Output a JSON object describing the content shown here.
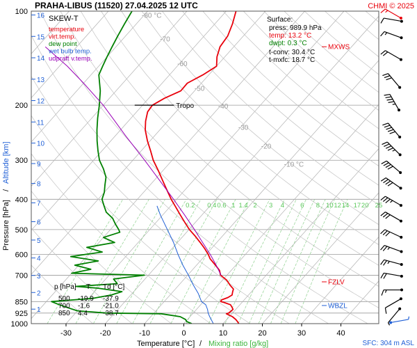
{
  "header": {
    "title": "PRAHA-LIBUS (11520)    27.04.2025 12 UTC",
    "credit": "CHMI © 2025"
  },
  "chart_data": {
    "type": "line",
    "subtitle": "SKEW-T",
    "xlabel": {
      "temperature": "Temperature [°C]",
      "separator": "/",
      "mixing": "Mixing ratio [g/kg]"
    },
    "ylabel": {
      "pressure": "Pressure [hPa]",
      "separator": "/",
      "altitude": "Altitude [km]"
    },
    "xlim": [
      -35,
      45
    ],
    "x_ticks": [
      -30,
      -20,
      -10,
      0,
      10,
      20,
      30,
      40
    ],
    "p_ticks": [
      100,
      200,
      300,
      400,
      500,
      600,
      700,
      850,
      925,
      1000
    ],
    "km_ticks": [
      1,
      2,
      3,
      4,
      5,
      6,
      7,
      8,
      9,
      10,
      11,
      12,
      13,
      14,
      15,
      16
    ],
    "isotherm_labels": [
      {
        "t": -80,
        "p": 105,
        "text": "-80 °C"
      },
      {
        "t": -70,
        "p": 125,
        "text": "-70"
      },
      {
        "t": -60,
        "p": 150,
        "text": "-60"
      },
      {
        "t": -50,
        "p": 180,
        "text": "-50"
      },
      {
        "t": -40,
        "p": 205,
        "text": "-40"
      },
      {
        "t": -30,
        "p": 240,
        "text": "-30"
      },
      {
        "t": -20,
        "p": 275,
        "text": "-20"
      },
      {
        "t": -10,
        "p": 315,
        "text": "-10 °C"
      }
    ],
    "mixing_ratio_labels": [
      {
        "t": -26,
        "text": "0.2"
      },
      {
        "t": -20.5,
        "text": "0.4"
      },
      {
        "t": -18,
        "text": "0.6"
      },
      {
        "t": -15,
        "text": "1"
      },
      {
        "t": -12.5,
        "text": "1.4"
      },
      {
        "t": -9.5,
        "text": "2"
      },
      {
        "t": -5.5,
        "text": "3"
      },
      {
        "t": -2.5,
        "text": "4"
      },
      {
        "t": 2.5,
        "text": "6"
      },
      {
        "t": 6.5,
        "text": "8"
      },
      {
        "t": 9.5,
        "text": "10"
      },
      {
        "t": 11.5,
        "text": "12"
      },
      {
        "t": 13.5,
        "text": "14"
      },
      {
        "t": 16.5,
        "text": "17"
      },
      {
        "t": 18.5,
        "text": "20"
      },
      {
        "t": 22,
        "text": "25"
      }
    ],
    "legend": [
      {
        "text": "temperature",
        "color": "#e8000b"
      },
      {
        "text": "virt.temp.",
        "color": "#e8000b"
      },
      {
        "text": "dew point",
        "color": "#008000"
      },
      {
        "text": "wet bulb temp.",
        "color": "#1f5fd6"
      },
      {
        "text": "udpraft v.temp.",
        "color": "#9a00b8"
      }
    ],
    "surface": {
      "heading": "Surface:",
      "lines": [
        {
          "text": "press: 989.9 hPa",
          "color": "#000000"
        },
        {
          "text": "temp: 13.2 °C",
          "color": "#e8000b"
        },
        {
          "text": "dwpt: 0.3 °C",
          "color": "#008000"
        }
      ],
      "conv": [
        {
          "text": "t-conv: 30.4 °C"
        },
        {
          "text": "t-mxfc: 18.7 °C"
        }
      ]
    },
    "levels_table": {
      "headers": [
        "p [hPa]",
        "T",
        "Td [°C]"
      ],
      "rows": [
        [
          "500",
          "-19.9",
          "-37.9"
        ],
        [
          "700",
          "-1.6",
          "-21.0"
        ],
        [
          "850",
          "4.4",
          "-38.7"
        ]
      ]
    },
    "markers": [
      {
        "label": "MXWS",
        "p": 130,
        "color": "#e8000b"
      },
      {
        "label": "FZLV",
        "p": 735,
        "color": "#e8000b"
      },
      {
        "label": "WBZL",
        "p": 875,
        "color": "#1f5fd6"
      }
    ],
    "tropopause": {
      "p": 200,
      "label": "Tropo"
    },
    "sfc_label": "SFC: 304 m ASL",
    "series": [
      {
        "name": "temperature",
        "color": "#e8000b",
        "points": [
          [
            1000,
            14
          ],
          [
            985,
            13.2
          ],
          [
            970,
            12.3
          ],
          [
            950,
            10.8
          ],
          [
            930,
            8.6
          ],
          [
            925,
            9
          ],
          [
            912,
            9.2
          ],
          [
            900,
            9.3
          ],
          [
            885,
            8.5
          ],
          [
            870,
            7.6
          ],
          [
            855,
            5.4
          ],
          [
            850,
            4.4
          ],
          [
            840,
            4.2
          ],
          [
            825,
            5.3
          ],
          [
            810,
            5.8
          ],
          [
            790,
            5.2
          ],
          [
            775,
            4.8
          ],
          [
            755,
            3.2
          ],
          [
            740,
            2.1
          ],
          [
            725,
            1
          ],
          [
            700,
            -1.6
          ],
          [
            675,
            -3
          ],
          [
            650,
            -5.2
          ],
          [
            620,
            -8
          ],
          [
            600,
            -9.5
          ],
          [
            575,
            -11.7
          ],
          [
            550,
            -14.2
          ],
          [
            525,
            -16.9
          ],
          [
            500,
            -19.9
          ],
          [
            475,
            -22.6
          ],
          [
            450,
            -25.4
          ],
          [
            425,
            -28.3
          ],
          [
            400,
            -31.4
          ],
          [
            375,
            -34.4
          ],
          [
            350,
            -37.6
          ],
          [
            325,
            -41
          ],
          [
            300,
            -44.8
          ],
          [
            280,
            -47.6
          ],
          [
            260,
            -50.7
          ],
          [
            240,
            -53.7
          ],
          [
            225,
            -55.6
          ],
          [
            210,
            -57.2
          ],
          [
            200,
            -57.5
          ],
          [
            190,
            -56
          ],
          [
            180,
            -53.5
          ],
          [
            170,
            -53.6
          ],
          [
            160,
            -51.5
          ],
          [
            150,
            -50
          ],
          [
            140,
            -52
          ],
          [
            130,
            -53.5
          ],
          [
            120,
            -54
          ],
          [
            110,
            -55.5
          ],
          [
            100,
            -57.5
          ]
        ]
      },
      {
        "name": "dew point",
        "color": "#008000",
        "points": [
          [
            1000,
            2
          ],
          [
            985,
            0.3
          ],
          [
            970,
            -0.5
          ],
          [
            950,
            -2.5
          ],
          [
            930,
            -8
          ],
          [
            925,
            -22
          ],
          [
            910,
            -30
          ],
          [
            890,
            -33
          ],
          [
            870,
            -36
          ],
          [
            850,
            -38.7
          ],
          [
            830,
            -29
          ],
          [
            810,
            -25
          ],
          [
            790,
            -23
          ],
          [
            770,
            -30
          ],
          [
            760,
            -36
          ],
          [
            745,
            -26
          ],
          [
            720,
            -28
          ],
          [
            700,
            -21
          ],
          [
            690,
            -40
          ],
          [
            670,
            -36
          ],
          [
            650,
            -41
          ],
          [
            630,
            -36
          ],
          [
            610,
            -44
          ],
          [
            590,
            -37
          ],
          [
            570,
            -42
          ],
          [
            550,
            -36
          ],
          [
            530,
            -40
          ],
          [
            510,
            -37
          ],
          [
            500,
            -37.9
          ],
          [
            480,
            -40
          ],
          [
            460,
            -42
          ],
          [
            440,
            -45
          ],
          [
            420,
            -47
          ],
          [
            400,
            -49
          ],
          [
            380,
            -50
          ],
          [
            360,
            -51.5
          ],
          [
            340,
            -53
          ],
          [
            320,
            -55.5
          ],
          [
            300,
            -58.5
          ],
          [
            280,
            -61
          ],
          [
            260,
            -63.5
          ],
          [
            240,
            -66
          ],
          [
            220,
            -68.5
          ],
          [
            200,
            -71
          ],
          [
            180,
            -74
          ],
          [
            160,
            -78
          ],
          [
            150,
            -79
          ],
          [
            140,
            -80
          ],
          [
            130,
            -81
          ],
          [
            120,
            -82
          ],
          [
            110,
            -83
          ],
          [
            100,
            -84
          ]
        ]
      },
      {
        "name": "wet bulb temp.",
        "color": "#1f5fd6",
        "points": [
          [
            1000,
            7.5
          ],
          [
            985,
            6.8
          ],
          [
            950,
            5
          ],
          [
            925,
            3.8
          ],
          [
            900,
            2.8
          ],
          [
            870,
            1.3
          ],
          [
            850,
            -0.5
          ],
          [
            800,
            -3.2
          ],
          [
            750,
            -6.5
          ],
          [
            700,
            -9.8
          ],
          [
            650,
            -13.5
          ],
          [
            600,
            -17.2
          ],
          [
            550,
            -21
          ],
          [
            500,
            -25.5
          ],
          [
            450,
            -30.5
          ],
          [
            420,
            -33.5
          ]
        ]
      },
      {
        "name": "udpraft v.temp.",
        "color": "#9a00b8",
        "points": [
          [
            700,
            -1.5
          ],
          [
            650,
            -5
          ],
          [
            600,
            -9
          ],
          [
            550,
            -13.6
          ],
          [
            500,
            -18.6
          ],
          [
            450,
            -24.3
          ],
          [
            400,
            -30.8
          ],
          [
            350,
            -38.3
          ],
          [
            300,
            -47
          ],
          [
            250,
            -57.5
          ],
          [
            200,
            -70
          ],
          [
            170,
            -80
          ],
          [
            150,
            -88
          ],
          [
            130,
            -98
          ]
        ]
      }
    ],
    "wind_barbs": [
      {
        "p": 985,
        "dir": 80,
        "speed": 5,
        "color": "#1f5fd6"
      },
      {
        "p": 925,
        "dir": 220,
        "speed": 5,
        "color": "#000000"
      },
      {
        "p": 850,
        "dir": 240,
        "speed": 10,
        "color": "#000000"
      },
      {
        "p": 780,
        "dir": 270,
        "speed": 15,
        "color": "#000000"
      },
      {
        "p": 700,
        "dir": 280,
        "speed": 20,
        "color": "#000000"
      },
      {
        "p": 640,
        "dir": 285,
        "speed": 25,
        "color": "#000000"
      },
      {
        "p": 580,
        "dir": 290,
        "speed": 25,
        "color": "#000000"
      },
      {
        "p": 520,
        "dir": 295,
        "speed": 30,
        "color": "#000000"
      },
      {
        "p": 460,
        "dir": 300,
        "speed": 30,
        "color": "#000000"
      },
      {
        "p": 410,
        "dir": 300,
        "speed": 35,
        "color": "#000000"
      },
      {
        "p": 360,
        "dir": 305,
        "speed": 40,
        "color": "#000000"
      },
      {
        "p": 320,
        "dir": 310,
        "speed": 40,
        "color": "#000000"
      },
      {
        "p": 280,
        "dir": 315,
        "speed": 45,
        "color": "#000000"
      },
      {
        "p": 245,
        "dir": 320,
        "speed": 50,
        "color": "#000000"
      },
      {
        "p": 200,
        "dir": 330,
        "speed": 45,
        "color": "#000000"
      },
      {
        "p": 170,
        "dir": 320,
        "speed": 30,
        "color": "#000000"
      },
      {
        "p": 140,
        "dir": 300,
        "speed": 20,
        "color": "#000000"
      },
      {
        "p": 120,
        "dir": 290,
        "speed": 15,
        "color": "#000000"
      },
      {
        "p": 107,
        "dir": 280,
        "speed": 10,
        "color": "#000000"
      },
      {
        "p": 100,
        "dir": 300,
        "speed": 15,
        "color": "#e8000b"
      }
    ]
  }
}
